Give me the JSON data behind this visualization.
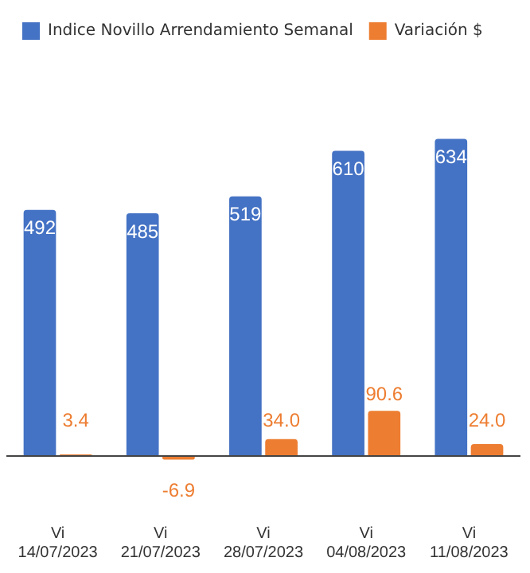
{
  "chart_data": {
    "type": "bar",
    "categories": [
      "Vi\n14/07/2023",
      "Vi\n21/07/2023",
      "Vi\n28/07/2023",
      "Vi\n04/08/2023",
      "Vi\n11/08/2023"
    ],
    "series": [
      {
        "name": "Indice Novillo Arrendamiento Semanal",
        "color": "#4472c4",
        "values": [
          492,
          485,
          519,
          610,
          634
        ],
        "value_labels": [
          "492",
          "485",
          "519",
          "610",
          "634"
        ]
      },
      {
        "name": "Variación $",
        "color": "#ed7d31",
        "values": [
          3.4,
          -6.9,
          34.0,
          90.6,
          24.0
        ],
        "value_labels": [
          "3.4",
          "-6.9",
          "34.0",
          "90.6",
          "24.0"
        ]
      }
    ],
    "legend": "top left",
    "tick_labels": "x"
  }
}
